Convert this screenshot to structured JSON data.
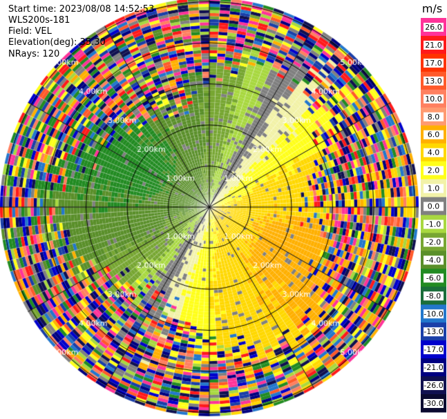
{
  "header": {
    "start_time": "Start time: 2023/08/08 14:52:53",
    "instrument": "WLS200s-181",
    "field": "Field: VEL",
    "elevation": "Elevation(deg): 35.30",
    "nrays": "NRays: 120"
  },
  "chart_data": {
    "type": "heatmap",
    "projection": "polar (PPI)",
    "field": "VEL",
    "elevation_deg": 35.3,
    "n_rays": 120,
    "range_ring_labels": [
      "1.00km",
      "2.00km",
      "3.00km",
      "4.00km",
      "5.00km"
    ],
    "range_rings_km": [
      1,
      2,
      3,
      4,
      5
    ],
    "colorbar": {
      "unit": "m/s",
      "tick_labels": [
        "26.0",
        "21.0",
        "17.0",
        "13.0",
        "10.0",
        "8.0",
        "6.0",
        "4.0",
        "2.0",
        "1.0",
        "0.0",
        "-1.0",
        "-2.0",
        "-4.0",
        "-6.0",
        "-8.0",
        "-10.0",
        "-13.0",
        "-17.0",
        "-21.0",
        "-26.0",
        "-30.0"
      ],
      "colors": [
        "#ff3399",
        "#ff1a1a",
        "#ff3300",
        "#ff5a2a",
        "#ff8060",
        "#ff9a70",
        "#ffb000",
        "#ffd800",
        "#ffff1a",
        "#f2f2a8",
        "#808080",
        "#a8d840",
        "#77a632",
        "#5a8f2a",
        "#228b22",
        "#1a6e3a",
        "#2277cc",
        "#1a3fa8",
        "#0000cc",
        "#000080",
        "#101050",
        "#0a0a30"
      ]
    },
    "pattern": "near field (< ~3 km): negative velocities (green / blue) to the west and northwest, positive (yellow / orange / red) to the east and southeast, zero (grey) band running southwest to northeast; far field (> ~3 km): noisy multicolour returns"
  }
}
